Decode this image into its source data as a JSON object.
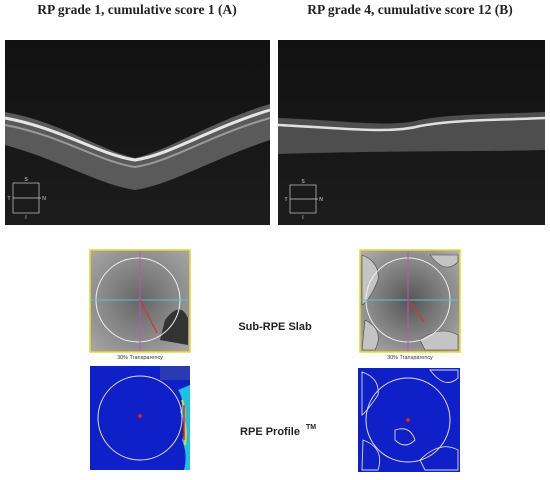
{
  "panels": [
    {
      "title": "RP grade 1, cumulative score 1 (A)",
      "orientation": [
        "S",
        "T",
        "N",
        "I"
      ],
      "transparency_label": "30% Transparency"
    },
    {
      "title": "RP grade 4, cumulative score 12 (B)",
      "orientation": [
        "S",
        "T",
        "N",
        "I"
      ],
      "transparency_label": "30% Transparency"
    }
  ],
  "row_labels": {
    "slab": "Sub-RPE Slab",
    "profile": "RPE Profile",
    "profile_mark": "TM"
  }
}
